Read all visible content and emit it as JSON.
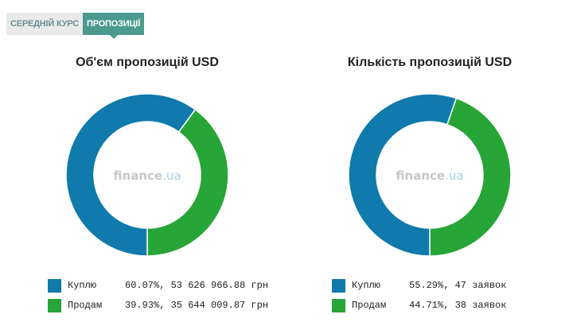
{
  "tabs": [
    {
      "label": "СЕРЕДНІЙ КУРС",
      "active": false
    },
    {
      "label": "ПРОПОЗИЦІЇ",
      "active": true
    }
  ],
  "watermark": {
    "main": "finance",
    "dot": ".ua"
  },
  "colors": {
    "buy": "#0f7aab",
    "sell": "#27a536"
  },
  "chart_data": [
    {
      "type": "pie",
      "title": "Об'єм пропозицій USD",
      "slices": [
        {
          "label": "Куплю",
          "value": 60.07,
          "detail": "60.07%, 53 626 966.88 грн",
          "color": "#0f7aab"
        },
        {
          "label": "Продам",
          "value": 39.93,
          "detail": "39.93%, 35 644 009.87 грн",
          "color": "#27a536"
        }
      ]
    },
    {
      "type": "pie",
      "title": "Кількість пропозицій USD",
      "slices": [
        {
          "label": "Куплю",
          "value": 55.29,
          "detail": "55.29%, 47 заявок",
          "color": "#0f7aab"
        },
        {
          "label": "Продам",
          "value": 44.71,
          "detail": "44.71%, 38 заявок",
          "color": "#27a536"
        }
      ]
    }
  ]
}
